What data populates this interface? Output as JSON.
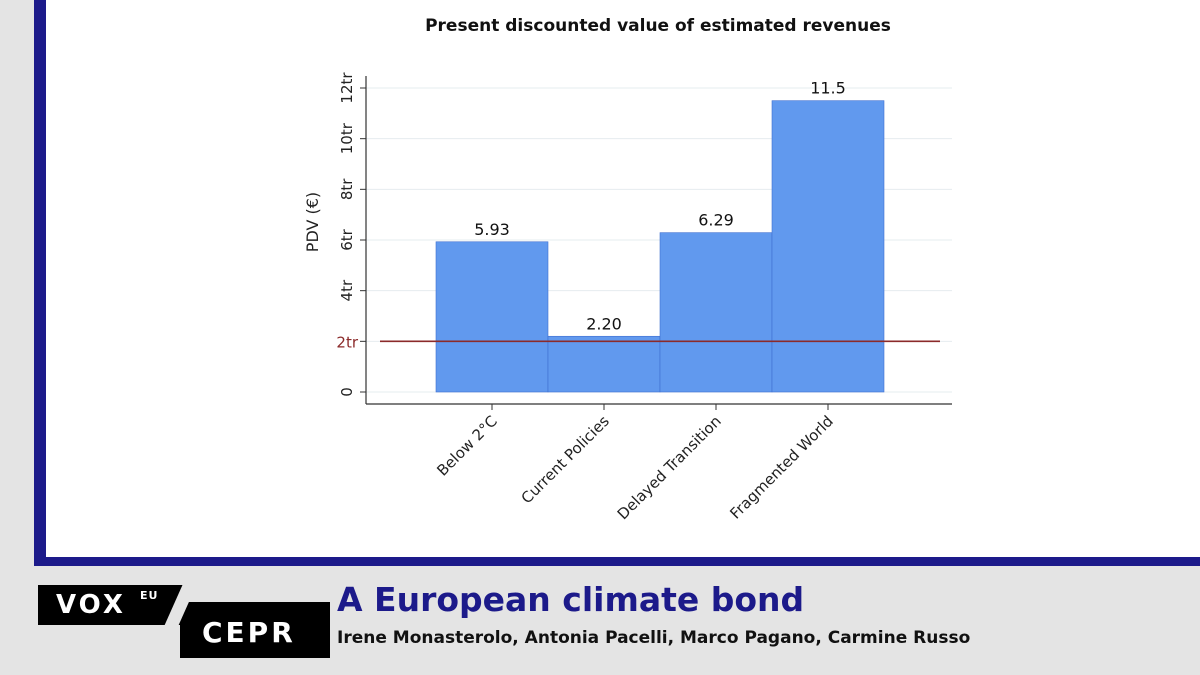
{
  "chart_data": {
    "type": "bar",
    "title": "Present discounted value of estimated revenues",
    "ylabel": "PDV (€)",
    "xlabel": "",
    "categories": [
      "Below 2°C",
      "Current Policies",
      "Delayed Transition",
      "Fragmented World"
    ],
    "values": [
      5.93,
      2.2,
      6.29,
      11.5
    ],
    "value_labels": [
      "5.93",
      "2.20",
      "6.29",
      "11.5"
    ],
    "ylim": [
      0,
      12
    ],
    "yticks": [
      0,
      2,
      4,
      6,
      8,
      10,
      12
    ],
    "ytick_labels": [
      "0",
      "2tr",
      "4tr",
      "6tr",
      "8tr",
      "10tr",
      "12tr"
    ],
    "reference_line": {
      "value": 2,
      "label": "2tr",
      "color": "#8b2a2a"
    },
    "bar_color": "#6199ee",
    "grid": "horizontal"
  },
  "footer": {
    "logo_vox": "VOX",
    "logo_eu": "EU",
    "logo_cepr": "CEPR",
    "article_title": "A European climate bond",
    "authors": "Irene Monasterolo, Antonia Pacelli, Marco Pagano, Carmine Russo"
  },
  "colors": {
    "frame": "#1c1a8a",
    "background": "#e4e4e4"
  }
}
